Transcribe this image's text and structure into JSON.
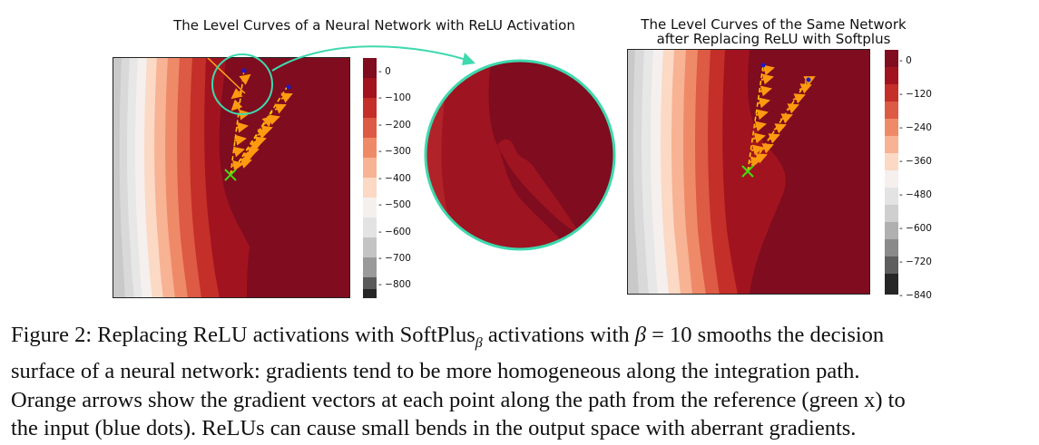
{
  "figure": {
    "left_panel": {
      "title": "The Level Curves of a Neural Network with ReLU Activation",
      "colorbar_ticks": [
        "0",
        "−100",
        "−200",
        "−300",
        "−400",
        "−500",
        "−600",
        "−700",
        "−800"
      ]
    },
    "right_panel": {
      "title_line1": "The Level Curves of the Same Network",
      "title_line2": "after Replacing ReLU with Softplus",
      "colorbar_ticks": [
        "0",
        "−120",
        "−240",
        "−360",
        "−480",
        "−600",
        "−720",
        "−840"
      ]
    },
    "colors": {
      "deep_red": "#7f0c1f",
      "zoom_circle": "#3ed9ae",
      "arrow": "#ffa21a",
      "path_line": "#ffcc00",
      "reference_marker": "#44dd11",
      "input_marker": "#1a1acc"
    }
  },
  "caption": {
    "line1_prefix": "Figure 2:  Replacing ReLU activations with SoftPlus",
    "beta_sub": "β",
    "line1_mid": " activations with ",
    "beta": "β",
    "line1_suffix": " = 10 smooths the decision",
    "line2": "surface of a neural network: gradients tend to be more homogeneous along the integration path.",
    "line3": "Orange arrows show the gradient vectors at each point along the path from the reference (green x) to",
    "line4": "the input (blue dots). ReLUs can cause small bends in the output space with aberrant gradients."
  }
}
